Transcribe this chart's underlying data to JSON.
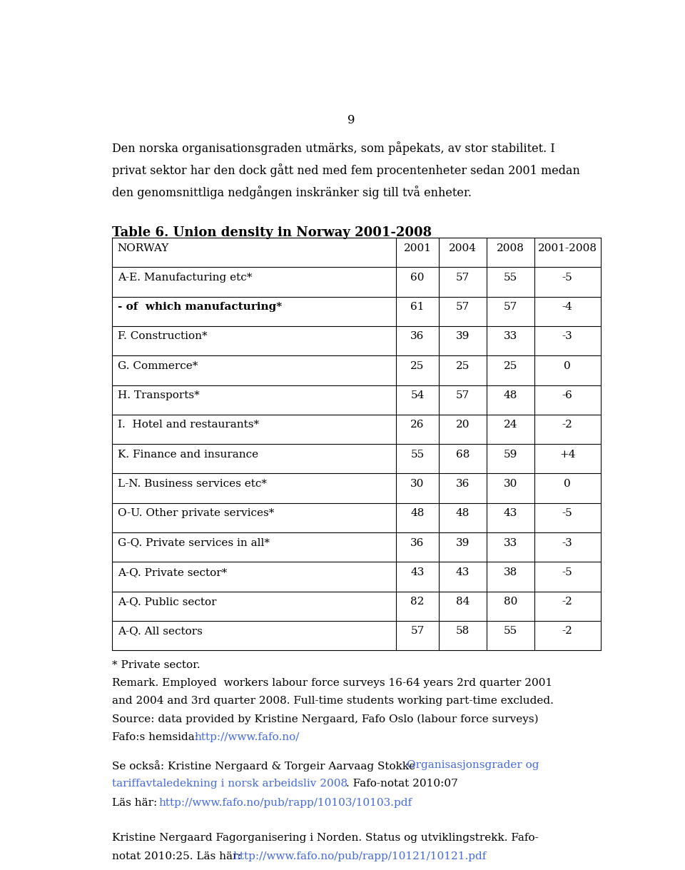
{
  "page_number": "9",
  "intro_lines": [
    "Den norska organisationsgraden utmärks, som påpekats, av stor stabilitet. I",
    "privat sektor har den dock gått ned med fem procentenheter sedan 2001 medan",
    "den genomsnittliga nedgången inskränker sig till två enheter."
  ],
  "table_title": "Table 6. Union density in Norway 2001-2008",
  "table_headers": [
    "NORWAY",
    "2001",
    "2004",
    "2008",
    "2001-2008"
  ],
  "table_rows": [
    [
      "A-E. Manufacturing etc*",
      "60",
      "57",
      "55",
      "-5"
    ],
    [
      "- of  which manufacturing*",
      "61",
      "57",
      "57",
      "-4"
    ],
    [
      "F. Construction*",
      "36",
      "39",
      "33",
      "-3"
    ],
    [
      "G. Commerce*",
      "25",
      "25",
      "25",
      "0"
    ],
    [
      "H. Transports*",
      "54",
      "57",
      "48",
      "-6"
    ],
    [
      "I.  Hotel and restaurants*",
      "26",
      "20",
      "24",
      "-2"
    ],
    [
      "K. Finance and insurance",
      "55",
      "68",
      "59",
      "+4"
    ],
    [
      "L-N. Business services etc*",
      "30",
      "36",
      "30",
      "0"
    ],
    [
      "O-U. Other private services*",
      "48",
      "48",
      "43",
      "-5"
    ],
    [
      "G-Q. Private services in all*",
      "36",
      "39",
      "33",
      "-3"
    ],
    [
      "A-Q. Private sector*",
      "43",
      "43",
      "38",
      "-5"
    ],
    [
      "A-Q. Public sector",
      "82",
      "84",
      "80",
      "-2"
    ],
    [
      "A-Q. All sectors",
      "57",
      "58",
      "55",
      "-2"
    ]
  ],
  "footnote1": "* Private sector.",
  "remark_lines": [
    "Remark. Employed  workers labour force surveys 16-64 years 2rd quarter 2001",
    "and 2004 and 3rd quarter 2008. Full-time students working part-time excluded.",
    "Source: data provided by Kristine Nergaard, Fafo Oslo (labour force surveys)"
  ],
  "fafo_prefix": "Fafo:s hemsida: ",
  "fafo_link": "http://www.fafo.no/",
  "se_plain": "Se också: Kristine Nergaard & Torgeir Aarvaag Stokke ",
  "se_link": "Organisasjonsgrader og",
  "se_link2": "tariffavtaledekning i norsk arbeidsliv 2008",
  "se_after": ". Fafo-notat 2010:07",
  "las_prefix": "Läs här: ",
  "las_link1": "http://www.fafo.no/pub/rapp/10103/10103.pdf",
  "kristine_line1": "Kristine Nergaard Fagorganisering i Norden. Status og utviklingstrekk. Fafo-",
  "kristine_line2_plain": "notat 2010:25. Läs här: ",
  "kristine_line2_link": "http://www.fafo.no/pub/rapp/10121/10121.pdf",
  "link_color": "#4169E1",
  "bg_color": "#ffffff",
  "text_color": "#000000"
}
